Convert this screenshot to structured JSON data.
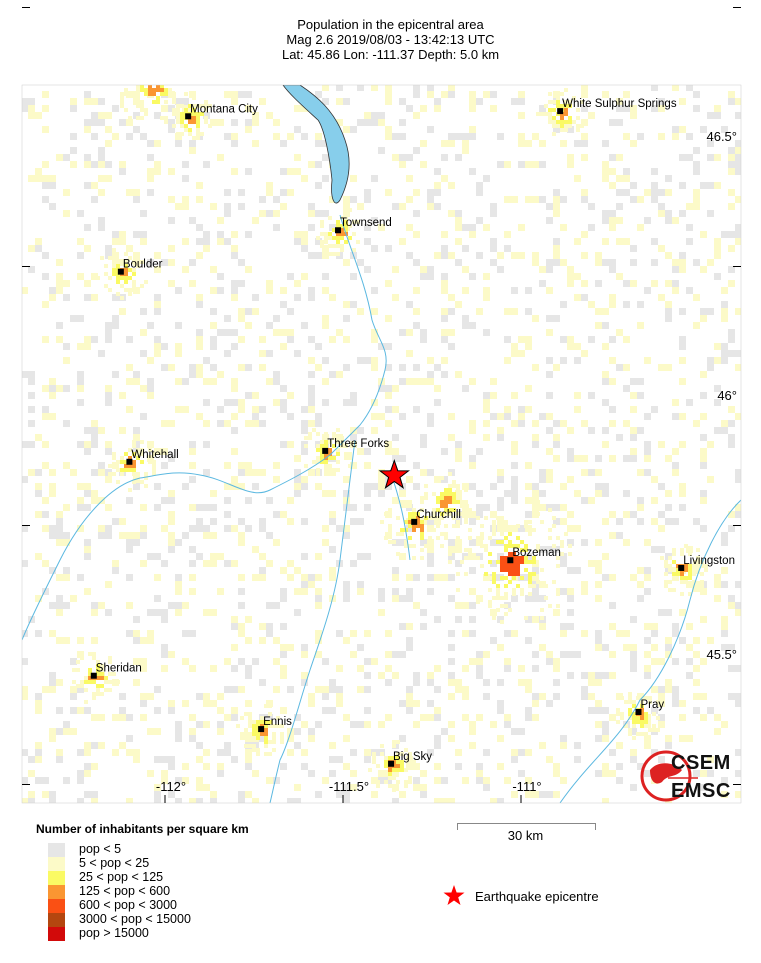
{
  "header": {
    "title": "Population in the epicentral area",
    "line2": "Mag 2.6  2019/08/03 - 13:42:13 UTC",
    "line3": "Lat: 45.86   Lon: -111.37     Depth:  5.0 km"
  },
  "map": {
    "lon_labels": [
      "-112°",
      "-111.5°",
      "-111°"
    ],
    "lat_labels": [
      "46.5°",
      "46°",
      "45.5°"
    ],
    "epicentre": {
      "lat": 45.86,
      "lon": -111.37
    },
    "towns": [
      {
        "name": "Montana City",
        "lon": -111.935,
        "lat": 46.54
      },
      {
        "name": "White Sulphur Springs",
        "lon": -110.89,
        "lat": 46.55
      },
      {
        "name": "Townsend",
        "lon": -111.514,
        "lat": 46.32
      },
      {
        "name": "Boulder",
        "lon": -112.124,
        "lat": 46.24
      },
      {
        "name": "Three Forks",
        "lon": -111.55,
        "lat": 45.894
      },
      {
        "name": "Whitehall",
        "lon": -112.1,
        "lat": 45.873
      },
      {
        "name": "Churchill",
        "lon": -111.3,
        "lat": 45.757
      },
      {
        "name": "Bozeman",
        "lon": -111.03,
        "lat": 45.683
      },
      {
        "name": "Livingston",
        "lon": -110.55,
        "lat": 45.668
      },
      {
        "name": "Sheridan",
        "lon": -112.2,
        "lat": 45.46
      },
      {
        "name": "Ennis",
        "lon": -111.73,
        "lat": 45.357
      },
      {
        "name": "Pray",
        "lon": -110.67,
        "lat": 45.39
      },
      {
        "name": "Big Sky",
        "lon": -111.365,
        "lat": 45.29
      }
    ],
    "colors": {
      "water": "#87ceeb",
      "river": "#5bb8e0",
      "epicentre": "#ff0000"
    }
  },
  "legend": {
    "title": "Number of inhabitants per square km",
    "items": [
      {
        "label": "pop < 5",
        "color": "#e6e6e6"
      },
      {
        "label": "5 < pop < 25",
        "color": "#fcfac8"
      },
      {
        "label": "25 < pop < 125",
        "color": "#fafa64"
      },
      {
        "label": "125 < pop < 600",
        "color": "#fa9632"
      },
      {
        "label": "600 < pop < 3000",
        "color": "#fa5014"
      },
      {
        "label": "3000 < pop < 15000",
        "color": "#b4460f"
      },
      {
        "label": "pop > 15000",
        "color": "#d20a0a"
      }
    ],
    "epicentre_label": "Earthquake epicentre"
  },
  "scale": {
    "label": "30 km"
  },
  "logo": {
    "line1": "CSEM",
    "line2": "EMSC"
  }
}
